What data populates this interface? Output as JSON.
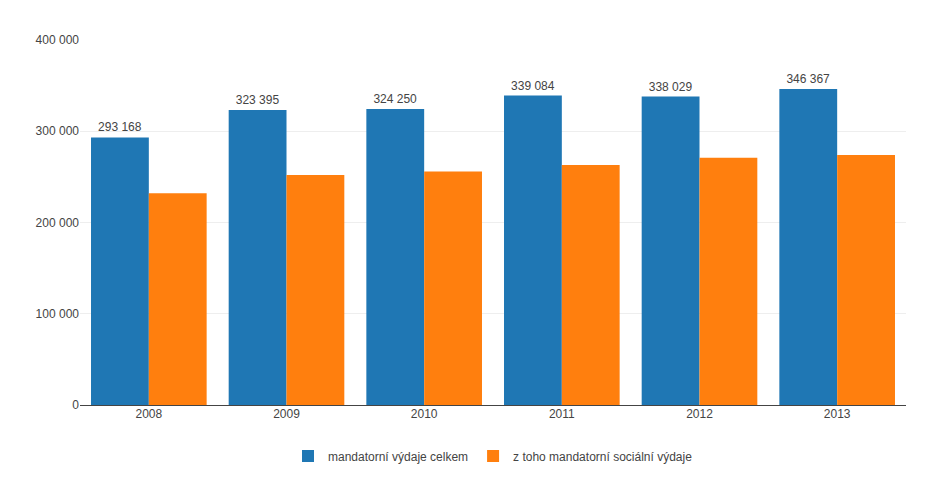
{
  "chart_data": {
    "type": "bar",
    "categories": [
      "2008",
      "2009",
      "2010",
      "2011",
      "2012",
      "2013"
    ],
    "series": [
      {
        "name": "mandatorní výdaje celkem",
        "values": [
          293168,
          323395,
          324250,
          339084,
          338029,
          346367
        ],
        "data_labels": true,
        "value_labels": [
          "293 168",
          "323 395",
          "324 250",
          "339 084",
          "338 029",
          "346 367"
        ]
      },
      {
        "name": "z toho mandatorní sociální výdaje",
        "values": [
          232000,
          252000,
          256000,
          263000,
          271000,
          274000
        ]
      }
    ],
    "ylim": [
      0,
      400000
    ],
    "yticks": [
      0,
      {
        "value": 100000,
        "label": "100 000"
      },
      {
        "value": 200000,
        "label": "200 000"
      },
      {
        "value": 300000,
        "label": "300 000"
      },
      {
        "value": 400000,
        "label": "400 000"
      }
    ],
    "grid": true,
    "legend": "bottom"
  }
}
